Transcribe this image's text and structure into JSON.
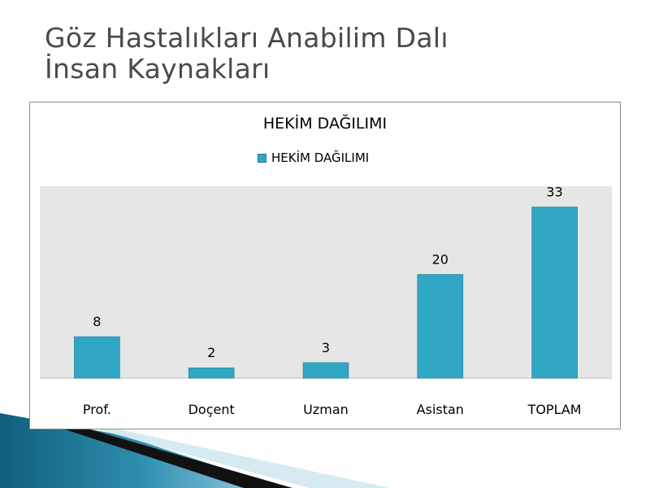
{
  "slide": {
    "title_line1": "Göz Hastalıkları Anabilim Dalı",
    "title_line2": "İnsan Kaynakları"
  },
  "chart_data": {
    "type": "bar",
    "title": "HEKİM DAĞILIMI",
    "categories": [
      "Prof.",
      "Doçent",
      "Uzman",
      "Asistan",
      "TOPLAM"
    ],
    "series": [
      {
        "name": "HEKİM DAĞILIMI",
        "values": [
          8,
          2,
          3,
          20,
          33
        ],
        "color": "#31a7c5"
      }
    ],
    "data_labels": [
      "8",
      "2",
      "3",
      "20",
      "33"
    ],
    "ylim": [
      0,
      37
    ],
    "grid": false,
    "legend_position": "top",
    "plot_background": "#e6e6e6"
  }
}
